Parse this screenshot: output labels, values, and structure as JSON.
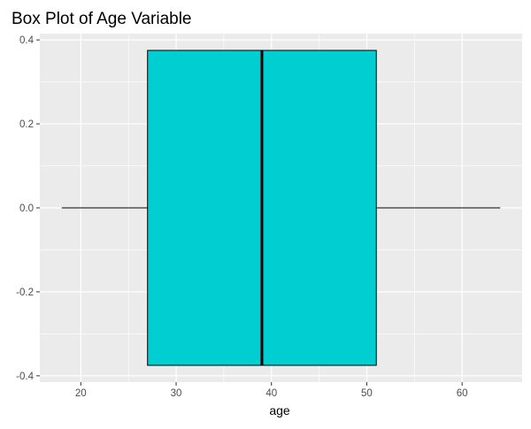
{
  "chart_data": {
    "type": "boxplot",
    "title": "Box Plot of Age Variable",
    "xlabel": "age",
    "ylabel": "",
    "xlim": [
      15.7,
      66.3
    ],
    "ylim": [
      -0.415,
      0.415
    ],
    "x_ticks": [
      20,
      30,
      40,
      50,
      60
    ],
    "x_tick_labels": [
      "20",
      "30",
      "40",
      "50",
      "60"
    ],
    "y_ticks": [
      -0.4,
      -0.2,
      0.0,
      0.2,
      0.4
    ],
    "y_tick_labels": [
      "-0.4",
      "-0.2",
      "0.0",
      "0.2",
      "0.4"
    ],
    "box": {
      "whisker_low": 18,
      "q1": 27,
      "median": 39,
      "q3": 51,
      "whisker_high": 64,
      "y_center": 0.0,
      "box_ymin": -0.375,
      "box_ymax": 0.375
    },
    "fill_color": "#00CED1",
    "panel_color": "#EBEBEB",
    "grid": true,
    "legend": "none"
  }
}
